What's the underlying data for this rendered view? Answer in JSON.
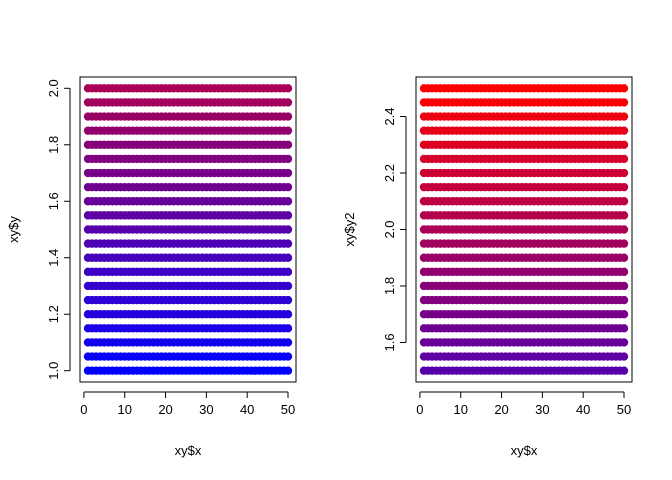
{
  "chart_data": [
    {
      "type": "scatter",
      "xlabel": "xy$x",
      "ylabel": "xy$y",
      "xlim": [
        1,
        50
      ],
      "ylim": [
        1.0,
        2.0
      ],
      "x_ticks": [
        0,
        10,
        20,
        30,
        40,
        50
      ],
      "y_ticks": [
        "1.0",
        "1.2",
        "1.4",
        "1.6",
        "1.8",
        "2.0"
      ],
      "x": {
        "from": 1,
        "to": 50,
        "step": 1
      },
      "y": {
        "from": 1.0,
        "to": 2.0,
        "step": 0.05
      },
      "color_scale": {
        "low": "#0000ff",
        "high": "#ff0000",
        "domain": [
          1.0,
          2.5
        ]
      },
      "grid": false
    },
    {
      "type": "scatter",
      "xlabel": "xy$x",
      "ylabel": "xy$y2",
      "xlim": [
        1,
        50
      ],
      "ylim": [
        1.5,
        2.5
      ],
      "x_ticks": [
        0,
        10,
        20,
        30,
        40,
        50
      ],
      "y_ticks": [
        "1.6",
        "1.8",
        "2.0",
        "2.2",
        "2.4"
      ],
      "x": {
        "from": 1,
        "to": 50,
        "step": 1
      },
      "y": {
        "from": 1.5,
        "to": 2.5,
        "step": 0.05
      },
      "color_scale": {
        "low": "#0000ff",
        "high": "#ff0000",
        "domain": [
          1.0,
          2.5
        ]
      },
      "grid": false
    }
  ]
}
